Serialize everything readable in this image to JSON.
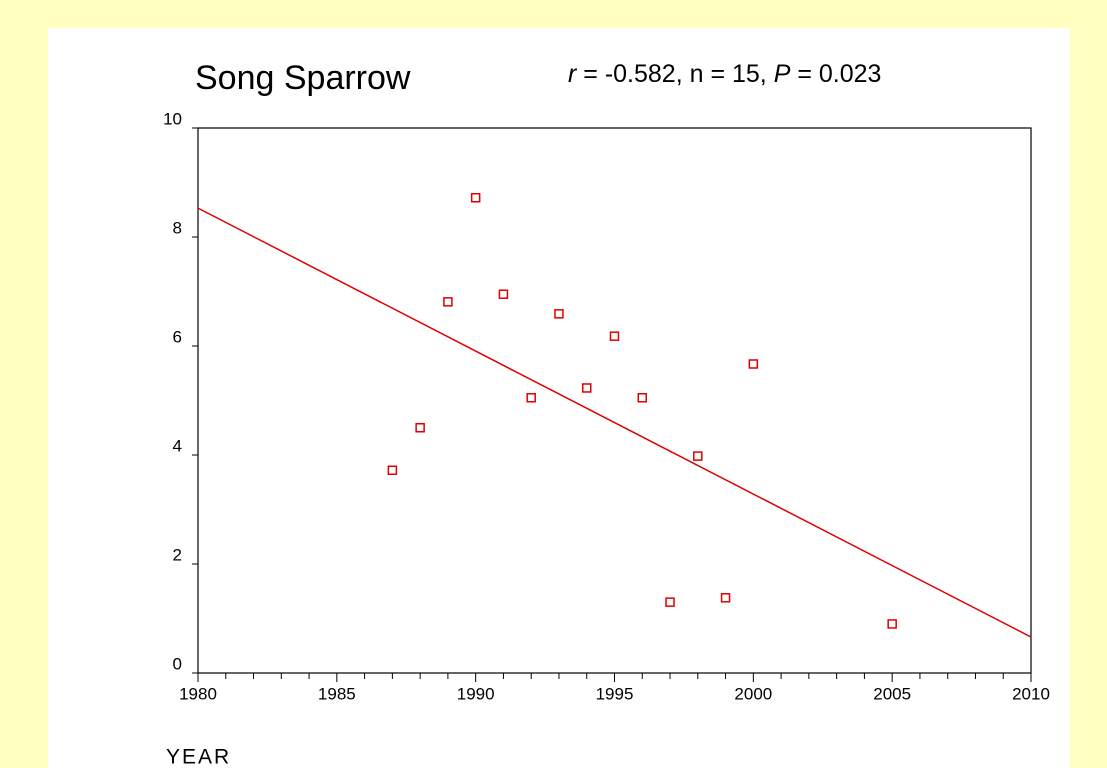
{
  "chart_data": {
    "type": "scatter",
    "title": "Song Sparrow",
    "annotation": [
      {
        "text": "r",
        "italic": true
      },
      {
        "text": " = -0.582, n = 15, ",
        "italic": false
      },
      {
        "text": "P",
        "italic": true
      },
      {
        "text": " = 0.023",
        "italic": false
      }
    ],
    "x_label": "YEAR",
    "x": [
      1987,
      1988,
      1989,
      1990,
      1991,
      1992,
      1993,
      1994,
      1995,
      1996,
      1997,
      1998,
      1999,
      2000,
      2005
    ],
    "values": [
      3.72,
      4.5,
      6.81,
      8.72,
      6.95,
      5.05,
      6.59,
      5.23,
      6.18,
      5.05,
      1.3,
      3.98,
      1.38,
      5.67,
      0.9
    ],
    "color": "#e00000",
    "trendline": {
      "x": [
        1980,
        2010
      ],
      "y": [
        8.53,
        0.66
      ],
      "color": "#e00000"
    },
    "xlim": [
      1980,
      2010
    ],
    "xticks": [
      1980,
      1985,
      1990,
      1995,
      2000,
      2005,
      2010
    ],
    "xminor_ticks": [
      1981,
      1982,
      1983,
      1984,
      1986,
      1987,
      1988,
      1989,
      1991,
      1992,
      1993,
      1994,
      1996,
      1997,
      1998,
      1999,
      2001,
      2002,
      2003,
      2004,
      2006,
      2007,
      2008,
      2009
    ],
    "ylim": [
      0,
      10
    ],
    "yticks": [
      0,
      2,
      4,
      6,
      8,
      10
    ],
    "grid": false
  }
}
